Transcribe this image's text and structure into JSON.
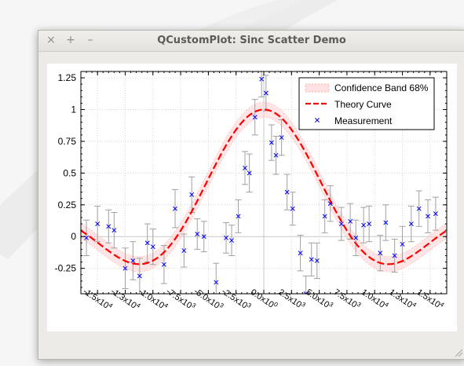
{
  "window": {
    "title": "QCustomPlot: Sinc Scatter Demo",
    "close_glyph": "×",
    "maximize_glyph": "+",
    "minimize_glyph": "–"
  },
  "colors": {
    "theory": "#ff0000",
    "measurement": "#0000ff",
    "band_fill": "#ffd0d0",
    "errorbar": "#a0a0a0"
  },
  "chart_data": {
    "type": "scatter",
    "title": "",
    "xlabel": "",
    "ylabel": "",
    "xlim": [
      -16500,
      16500
    ],
    "ylim": [
      -0.45,
      1.3
    ],
    "grid": true,
    "legend_position": "top-right",
    "x_tick_values": [
      -15000,
      -12500,
      -10000,
      -7500,
      -5000,
      -2500,
      0,
      2500,
      5000,
      7500,
      10000,
      12500,
      15000
    ],
    "x_tick_mantissas": [
      "-1.5",
      "-1.3",
      "-1.0",
      "-7.5",
      "-5.0",
      "-2.5",
      "0.0",
      "2.5",
      "5.0",
      "7.5",
      "1.0",
      "1.3",
      "1.5"
    ],
    "x_tick_exponents": [
      "4",
      "4",
      "4",
      "3",
      "3",
      "3",
      "0",
      "3",
      "3",
      "3",
      "4",
      "4",
      "4"
    ],
    "y_tick_values": [
      -0.25,
      0,
      0.25,
      0.5,
      0.75,
      1,
      1.25
    ],
    "y_tick_labels": [
      "-0.25",
      "0",
      "0.25",
      "0.5",
      "0.75",
      "1",
      "1.25"
    ],
    "legend": [
      "Confidence Band 68%",
      "Theory Curve",
      "Measurement"
    ],
    "theory_scale": 2500,
    "band_halfwidth": 0.06,
    "measurements": [
      {
        "x": -16000,
        "y": -0.01,
        "err": 0.14
      },
      {
        "x": -15000,
        "y": 0.1,
        "err": 0.14
      },
      {
        "x": -14000,
        "y": 0.08,
        "err": 0.13
      },
      {
        "x": -13500,
        "y": 0.05,
        "err": 0.14
      },
      {
        "x": -12500,
        "y": -0.25,
        "err": 0.16
      },
      {
        "x": -11800,
        "y": -0.19,
        "err": 0.15
      },
      {
        "x": -11200,
        "y": -0.31,
        "err": 0.14
      },
      {
        "x": -10500,
        "y": -0.05,
        "err": 0.15
      },
      {
        "x": -10000,
        "y": -0.08,
        "err": 0.14
      },
      {
        "x": -9000,
        "y": -0.22,
        "err": 0.15
      },
      {
        "x": -8000,
        "y": 0.22,
        "err": 0.15
      },
      {
        "x": -7200,
        "y": -0.11,
        "err": 0.13
      },
      {
        "x": -6500,
        "y": 0.33,
        "err": 0.14
      },
      {
        "x": -6000,
        "y": 0.02,
        "err": 0.12
      },
      {
        "x": -5400,
        "y": 0.0,
        "err": 0.12
      },
      {
        "x": -4300,
        "y": -0.36,
        "err": 0.15
      },
      {
        "x": -3400,
        "y": -0.01,
        "err": 0.12
      },
      {
        "x": -2900,
        "y": -0.03,
        "err": 0.12
      },
      {
        "x": -2300,
        "y": 0.16,
        "err": 0.13
      },
      {
        "x": -1700,
        "y": 0.54,
        "err": 0.13
      },
      {
        "x": -1300,
        "y": 0.5,
        "err": 0.15
      },
      {
        "x": -800,
        "y": 0.94,
        "err": 0.14
      },
      {
        "x": -200,
        "y": 1.24,
        "err": 0.14
      },
      {
        "x": 200,
        "y": 1.13,
        "err": 0.14
      },
      {
        "x": 700,
        "y": 0.74,
        "err": 0.14
      },
      {
        "x": 1100,
        "y": 0.64,
        "err": 0.15
      },
      {
        "x": 1600,
        "y": 0.78,
        "err": 0.14
      },
      {
        "x": 2100,
        "y": 0.35,
        "err": 0.14
      },
      {
        "x": 2600,
        "y": 0.22,
        "err": 0.13
      },
      {
        "x": 3300,
        "y": -0.13,
        "err": 0.14
      },
      {
        "x": 3800,
        "y": -0.45,
        "err": 0.14
      },
      {
        "x": 4300,
        "y": -0.18,
        "err": 0.13
      },
      {
        "x": 4800,
        "y": -0.19,
        "err": 0.14
      },
      {
        "x": 5500,
        "y": 0.16,
        "err": 0.13
      },
      {
        "x": 6000,
        "y": 0.26,
        "err": 0.14
      },
      {
        "x": 7000,
        "y": 0.1,
        "err": 0.13
      },
      {
        "x": 7800,
        "y": 0.12,
        "err": 0.14
      },
      {
        "x": 8300,
        "y": -0.01,
        "err": 0.14
      },
      {
        "x": 9000,
        "y": 0.09,
        "err": 0.14
      },
      {
        "x": 9500,
        "y": 0.1,
        "err": 0.14
      },
      {
        "x": 10500,
        "y": -0.13,
        "err": 0.14
      },
      {
        "x": 11000,
        "y": 0.11,
        "err": 0.14
      },
      {
        "x": 11800,
        "y": -0.15,
        "err": 0.13
      },
      {
        "x": 12500,
        "y": -0.06,
        "err": 0.14
      },
      {
        "x": 13300,
        "y": 0.1,
        "err": 0.14
      },
      {
        "x": 14000,
        "y": 0.22,
        "err": 0.14
      },
      {
        "x": 14800,
        "y": 0.16,
        "err": 0.13
      },
      {
        "x": 15500,
        "y": 0.18,
        "err": 0.13
      }
    ]
  }
}
